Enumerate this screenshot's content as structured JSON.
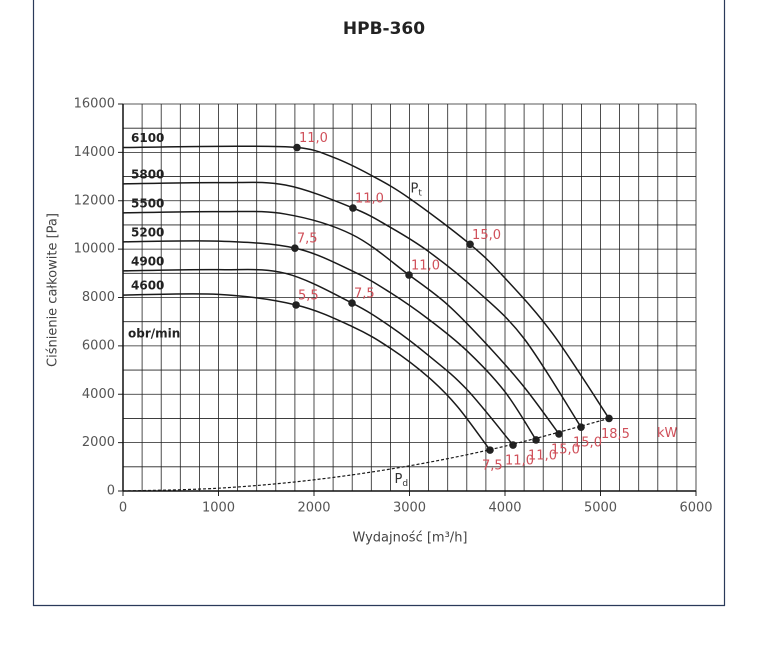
{
  "chart_data": {
    "type": "line",
    "title": "HPB-360",
    "x_label": "Wydajność [m³/h]",
    "y_label": "Ciśnienie całkowite [Pa]",
    "xlim": [
      0,
      6000
    ],
    "ylim": [
      0,
      16000
    ],
    "xticks": [
      0,
      1000,
      2000,
      3000,
      4000,
      5000,
      6000
    ],
    "yticks": [
      0,
      2000,
      4000,
      6000,
      8000,
      10000,
      12000,
      14000,
      16000
    ],
    "grid": true,
    "x_grid_step": 200,
    "y_grid_step": 1000,
    "speed_unit": "obr/min",
    "power_unit": "kW",
    "pt_label": {
      "text": "P",
      "sub": "t"
    },
    "series": [
      {
        "name": "6100",
        "color": "#1a1a1a",
        "x": [
          0,
          1000,
          1822,
          2200,
          2600,
          3000,
          3634,
          4000,
          4500,
          5089
        ],
        "values": [
          14200,
          14250,
          14200,
          13800,
          13050,
          12100,
          10200,
          8800,
          6500,
          3000
        ],
        "points": [
          {
            "x": 1822,
            "y": 14200,
            "label": "11,0"
          },
          {
            "x": 3634,
            "y": 10200,
            "label": "15,0"
          },
          {
            "x": 5089,
            "y": 3000,
            "label": "18,5"
          }
        ]
      },
      {
        "name": "5800",
        "color": "#1a1a1a",
        "x": [
          0,
          1000,
          1700,
          2408,
          2800,
          3200,
          3700,
          4200,
          4796
        ],
        "values": [
          12700,
          12750,
          12650,
          11700,
          10900,
          9900,
          8300,
          6300,
          2640
        ],
        "points": [
          {
            "x": 2408,
            "y": 11700,
            "label": "11,0"
          },
          {
            "x": 4796,
            "y": 2640,
            "label": "15,0"
          }
        ]
      },
      {
        "name": "5500",
        "color": "#1a1a1a",
        "x": [
          0,
          1000,
          1700,
          2400,
          2995,
          3400,
          3800,
          4200,
          4565
        ],
        "values": [
          11500,
          11550,
          11450,
          10600,
          8930,
          7700,
          6100,
          4300,
          2360
        ],
        "points": [
          {
            "x": 2995,
            "y": 8930,
            "label": "11,0"
          },
          {
            "x": 4565,
            "y": 2360,
            "label": "15,0"
          }
        ]
      },
      {
        "name": "5200",
        "color": "#1a1a1a",
        "x": [
          0,
          1000,
          1800,
          2400,
          2800,
          3200,
          3600,
          4000,
          4325
        ],
        "values": [
          10300,
          10330,
          10040,
          9100,
          8200,
          7100,
          5800,
          4100,
          2110
        ],
        "points": [
          {
            "x": 1800,
            "y": 10040,
            "label": "7,5"
          },
          {
            "x": 4325,
            "y": 2110,
            "label": "11,0"
          }
        ]
      },
      {
        "name": "4900",
        "color": "#1a1a1a",
        "x": [
          0,
          1000,
          1700,
          2398,
          2800,
          3200,
          3600,
          4084
        ],
        "values": [
          9100,
          9150,
          9000,
          7770,
          6800,
          5600,
          4200,
          1900
        ],
        "points": [
          {
            "x": 2398,
            "y": 7770,
            "label": "7,5"
          },
          {
            "x": 4084,
            "y": 1900,
            "label": "11,0"
          }
        ]
      },
      {
        "name": "4600",
        "color": "#1a1a1a",
        "x": [
          0,
          1000,
          1812,
          2400,
          2800,
          3200,
          3500,
          3843
        ],
        "values": [
          8100,
          8130,
          7690,
          6800,
          5900,
          4700,
          3500,
          1690
        ],
        "points": [
          {
            "x": 1812,
            "y": 7690,
            "label": "5,5"
          },
          {
            "x": 3843,
            "y": 1690,
            "label": "7,5"
          }
        ]
      }
    ],
    "pd_curve": {
      "label": {
        "text": "P",
        "sub": "d"
      },
      "color": "#1a1a1a",
      "x": [
        0,
        1000,
        2000,
        3000,
        4000,
        5089
      ],
      "values": [
        0,
        116,
        463,
        1042,
        1853,
        3000
      ]
    },
    "label_color": "#d0505a"
  }
}
